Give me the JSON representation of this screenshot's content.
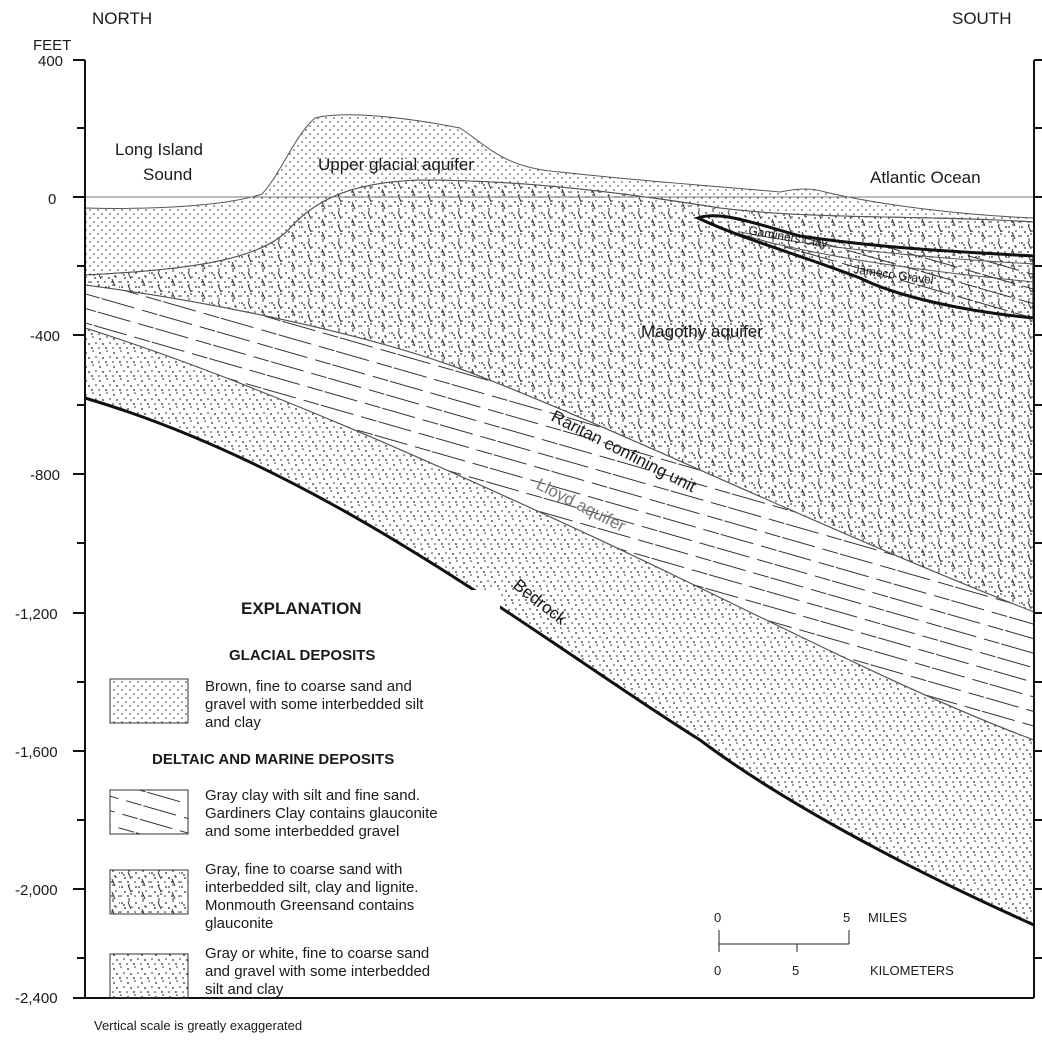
{
  "header": {
    "left": "NORTH",
    "right": "SOUTH"
  },
  "axis": {
    "unit": "FEET",
    "ticks": [
      "400",
      "0",
      "-400",
      "-800",
      "-1,200",
      "-1,600",
      "-2,000",
      "-2,400"
    ]
  },
  "units": {
    "long_island_sound": [
      "Long Island",
      "Sound"
    ],
    "atlantic_ocean": "Atlantic Ocean",
    "upper_glacial": "Upper glacial aquifer",
    "gardiners_clay": "Gardiners Clay",
    "jameco_gravel": "Jameco Gravel",
    "magothy": "Magothy aquifer",
    "raritan": "Raritan confining unit",
    "lloyd": "Lloyd aquifer",
    "bedrock": "Bedrock"
  },
  "explanation": {
    "title": "EXPLANATION",
    "group1": "GLACIAL DEPOSITS",
    "group2": "DELTAIC AND MARINE DEPOSITS",
    "items": [
      [
        "Brown, fine to coarse sand and",
        "gravel with some interbedded silt",
        "and clay"
      ],
      [
        "Gray clay with silt and fine sand.",
        "Gardiners Clay contains glauconite",
        "and some interbedded gravel"
      ],
      [
        "Gray, fine to coarse sand with",
        "interbedded silt, clay and lignite.",
        "Monmouth Greensand contains",
        "glauconite"
      ],
      [
        "Gray or white, fine to coarse sand",
        "and gravel with some interbedded",
        "silt and clay"
      ]
    ]
  },
  "scale_bar": {
    "miles_label": "MILES",
    "km_label": "KILOMETERS",
    "miles_ticks": [
      "0",
      "5"
    ],
    "km_ticks": [
      "0",
      "5"
    ]
  },
  "note": "Vertical scale is greatly exaggerated"
}
